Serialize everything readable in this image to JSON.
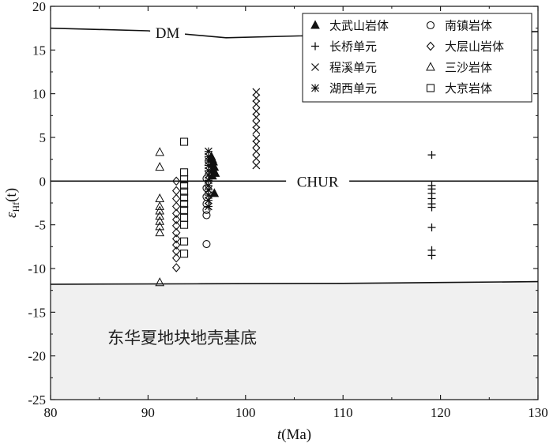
{
  "chart_data": {
    "type": "scatter",
    "title": "",
    "xlabel": {
      "italic": "t",
      "rest": "(Ma)"
    },
    "ylabel": {
      "symbol": "ε",
      "sub": "Hf",
      "rest": "(t)"
    },
    "xlim": [
      80,
      130
    ],
    "ylim": [
      -25,
      20
    ],
    "xticks": [
      "80",
      "90",
      "100",
      "110",
      "120",
      "130"
    ],
    "yticks": [
      "-25",
      "-20",
      "-15",
      "-10",
      "-5",
      "0",
      "5",
      "10",
      "15",
      "20"
    ],
    "grid": false,
    "legend_position": "top-right",
    "legend": [
      {
        "label": "太武山岩体",
        "marker": "triangle-filled"
      },
      {
        "label": "南镇岩体",
        "marker": "circle"
      },
      {
        "label": "长桥单元",
        "marker": "plus"
      },
      {
        "label": "大层山岩体",
        "marker": "diamond"
      },
      {
        "label": "程溪单元",
        "marker": "cross"
      },
      {
        "label": "三沙岩体",
        "marker": "triangle-open"
      },
      {
        "label": "湖西单元",
        "marker": "asterisk"
      },
      {
        "label": "大京岩体",
        "marker": "square"
      }
    ],
    "reference_lines": [
      {
        "label": "DM",
        "points": [
          [
            80,
            17.5
          ],
          [
            90,
            17.2
          ],
          [
            98,
            16.4
          ],
          [
            105,
            16.6
          ],
          [
            115,
            16.9
          ],
          [
            130,
            17.1
          ]
        ]
      },
      {
        "label": "CHUR",
        "points": [
          [
            80,
            0
          ],
          [
            130,
            0
          ]
        ]
      },
      {
        "label": "",
        "points": [
          [
            80,
            -11.8
          ],
          [
            95,
            -11.75
          ],
          [
            110,
            -11.7
          ],
          [
            120,
            -11.6
          ],
          [
            130,
            -11.5
          ]
        ]
      }
    ],
    "shaded_region": {
      "label": "东华夏地块地壳基底",
      "lower_boundary": [
        [
          80,
          -11.8
        ],
        [
          95,
          -11.75
        ],
        [
          110,
          -11.7
        ],
        [
          120,
          -11.6
        ],
        [
          130,
          -11.5
        ]
      ],
      "to": -25,
      "color": "#f0f0f0"
    },
    "series": [
      {
        "marker": "triangle-filled",
        "points": [
          [
            96.5,
            2.8
          ],
          [
            96.6,
            2.5
          ],
          [
            96.7,
            2.2
          ],
          [
            96.6,
            1.9
          ],
          [
            96.8,
            1.6
          ],
          [
            96.7,
            1.3
          ],
          [
            96.9,
            0.9
          ],
          [
            96.6,
            0.6
          ],
          [
            96.8,
            -1.4
          ]
        ]
      },
      {
        "marker": "circle",
        "points": [
          [
            96.0,
            0.3
          ],
          [
            96.0,
            -0.8
          ],
          [
            96.0,
            -1.8
          ],
          [
            96.0,
            -2.6
          ],
          [
            96.0,
            -3.3
          ],
          [
            96.0,
            -3.9
          ],
          [
            96.0,
            -7.2
          ]
        ]
      },
      {
        "marker": "plus",
        "points": [
          [
            119.1,
            3.0
          ],
          [
            119.1,
            -0.5
          ],
          [
            119.1,
            -0.9
          ],
          [
            119.1,
            -1.4
          ],
          [
            119.1,
            -2.0
          ],
          [
            119.1,
            -2.6
          ],
          [
            119.1,
            -3.0
          ],
          [
            119.1,
            -5.3
          ],
          [
            119.1,
            -7.9
          ],
          [
            119.1,
            -8.5
          ]
        ]
      },
      {
        "marker": "diamond",
        "points": [
          [
            92.9,
            0.0
          ],
          [
            92.9,
            -1.1
          ],
          [
            92.9,
            -2.0
          ],
          [
            92.9,
            -2.9
          ],
          [
            92.9,
            -3.7
          ],
          [
            92.9,
            -4.4
          ],
          [
            92.9,
            -5.1
          ],
          [
            92.9,
            -5.9
          ],
          [
            92.9,
            -6.6
          ],
          [
            92.9,
            -7.3
          ],
          [
            92.9,
            -8.0
          ],
          [
            92.9,
            -8.8
          ],
          [
            92.9,
            -9.9
          ]
        ]
      },
      {
        "marker": "cross",
        "points": [
          [
            101.1,
            10.2
          ],
          [
            101.1,
            9.5
          ],
          [
            101.1,
            8.8
          ],
          [
            101.1,
            8.0
          ],
          [
            101.1,
            7.3
          ],
          [
            101.1,
            6.5
          ],
          [
            101.1,
            5.8
          ],
          [
            101.1,
            4.9
          ],
          [
            101.1,
            4.2
          ],
          [
            101.1,
            3.4
          ],
          [
            101.1,
            2.6
          ],
          [
            101.1,
            1.8
          ]
        ]
      },
      {
        "marker": "triangle-open",
        "points": [
          [
            91.2,
            3.3
          ],
          [
            91.2,
            1.6
          ],
          [
            91.2,
            -2.0
          ],
          [
            91.2,
            -2.9
          ],
          [
            91.2,
            -3.4
          ],
          [
            91.2,
            -4.0
          ],
          [
            91.2,
            -4.6
          ],
          [
            91.2,
            -5.2
          ],
          [
            91.2,
            -5.9
          ],
          [
            91.2,
            -11.6
          ]
        ]
      },
      {
        "marker": "asterisk",
        "points": [
          [
            96.2,
            3.4
          ],
          [
            96.2,
            2.8
          ],
          [
            96.2,
            2.3
          ],
          [
            96.2,
            1.8
          ],
          [
            96.2,
            1.2
          ],
          [
            96.2,
            0.7
          ],
          [
            96.2,
            0.1
          ],
          [
            96.2,
            -0.5
          ],
          [
            96.2,
            -1.0
          ],
          [
            96.2,
            -1.6
          ],
          [
            96.2,
            -2.2
          ],
          [
            96.2,
            -2.9
          ]
        ]
      },
      {
        "marker": "square",
        "points": [
          [
            93.7,
            4.5
          ],
          [
            93.7,
            1.0
          ],
          [
            93.7,
            0.2
          ],
          [
            93.7,
            -0.5
          ],
          [
            93.7,
            -1.2
          ],
          [
            93.7,
            -1.9
          ],
          [
            93.7,
            -2.6
          ],
          [
            93.7,
            -3.3
          ],
          [
            93.7,
            -4.2
          ],
          [
            93.7,
            -5.0
          ],
          [
            93.7,
            -6.9
          ],
          [
            93.7,
            -8.3
          ]
        ]
      }
    ]
  }
}
